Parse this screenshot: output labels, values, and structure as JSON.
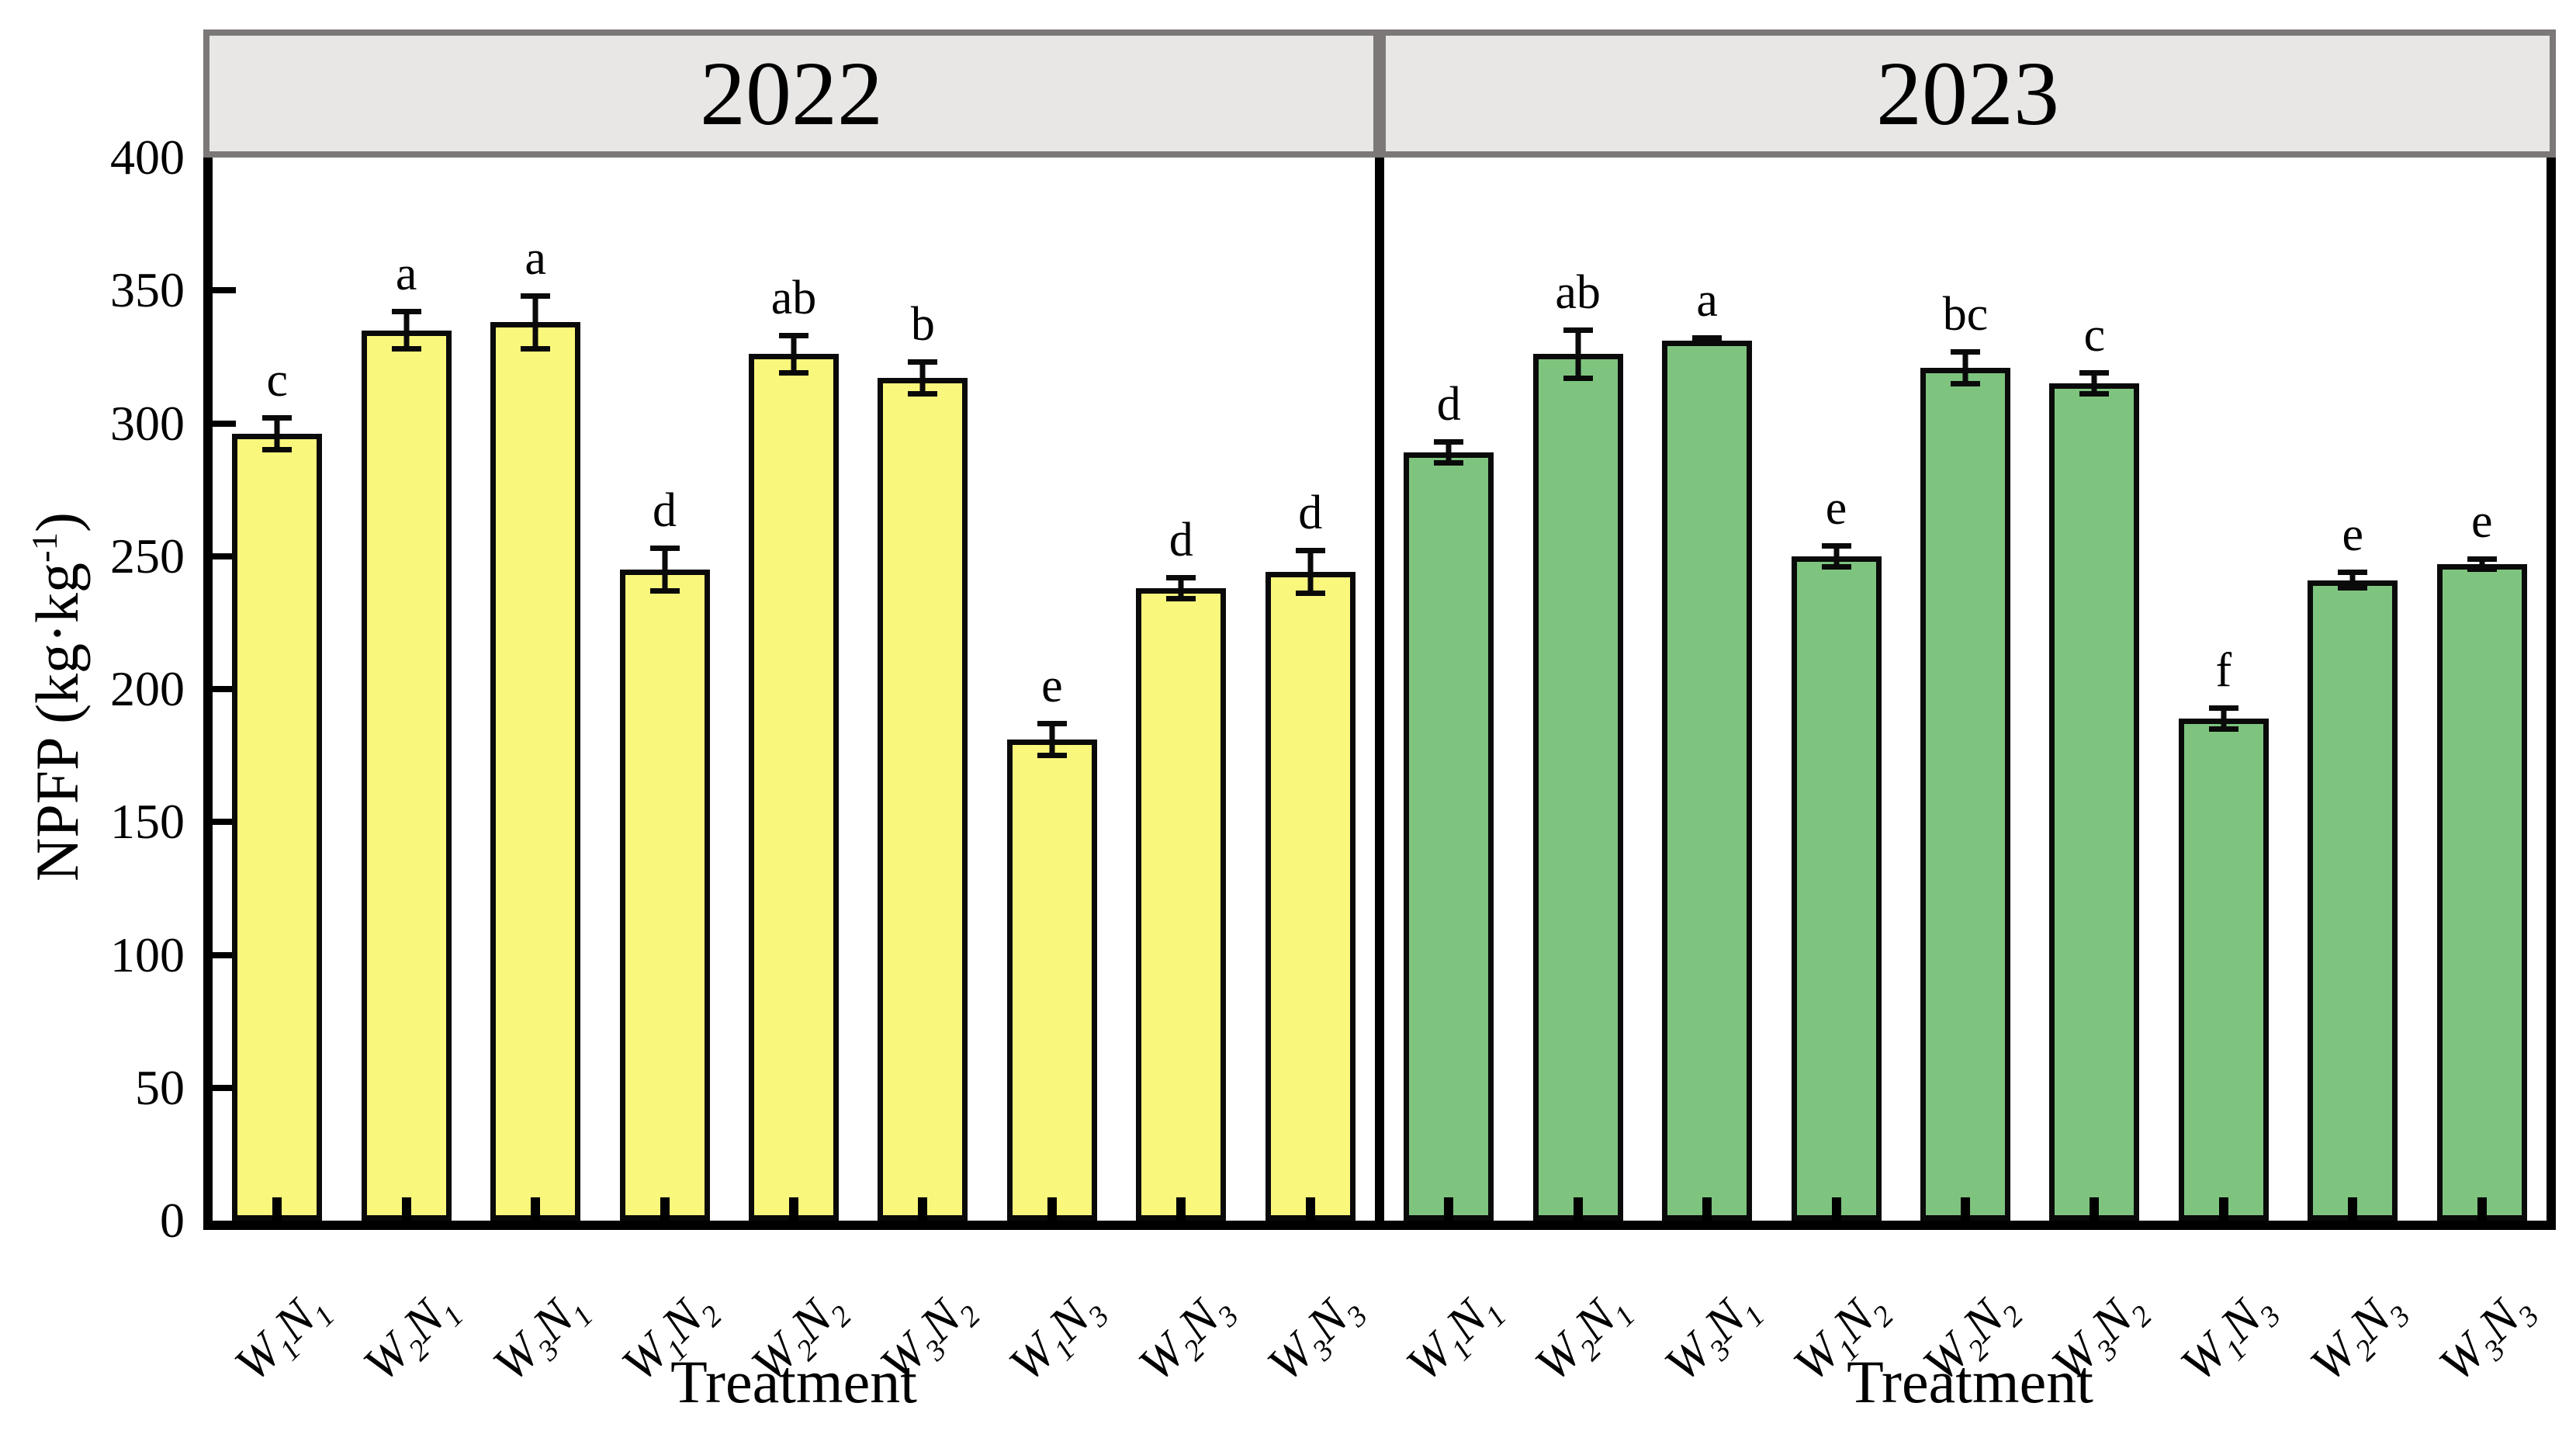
{
  "chart_data": {
    "type": "bar",
    "title": "",
    "xlabel": "Treatment",
    "ylabel": "NPFP (kg·kg⁻¹)",
    "ylabel_parts": {
      "pre": "NPFP (kg·kg",
      "sup": "-1",
      "post": ")"
    },
    "ylim": [
      0,
      400
    ],
    "yticks": [
      0,
      50,
      100,
      150,
      200,
      250,
      300,
      350,
      400
    ],
    "grid": false,
    "legend_position": "none",
    "error_bars": true,
    "categories": [
      "W1N1",
      "W2N1",
      "W3N1",
      "W1N2",
      "W2N2",
      "W3N2",
      "W1N3",
      "W2N3",
      "W3N3"
    ],
    "panels": [
      {
        "year": "2022",
        "bar_color": "#faf77d",
        "values": [
          296,
          335,
          338,
          245,
          326,
          317,
          181,
          238,
          244
        ],
        "errors": [
          7,
          8,
          11,
          9,
          8,
          7,
          7,
          5,
          9
        ],
        "letters": [
          "c",
          "a",
          "a",
          "d",
          "ab",
          "b",
          "e",
          "d",
          "d"
        ]
      },
      {
        "year": "2023",
        "bar_color": "#7ec47f",
        "values": [
          289,
          326,
          331,
          250,
          321,
          315,
          189,
          241,
          247
        ],
        "errors": [
          5,
          10,
          2,
          5,
          7,
          5,
          5,
          4,
          3
        ],
        "letters": [
          "d",
          "ab",
          "a",
          "e",
          "bc",
          "c",
          "f",
          "e",
          "e"
        ]
      }
    ],
    "colors": {
      "bar_2022": "#faf77d",
      "bar_2023": "#7ec47f",
      "header_fill": "#e9e7e6",
      "header_border": "#7b7877",
      "axis": "#000000"
    }
  }
}
